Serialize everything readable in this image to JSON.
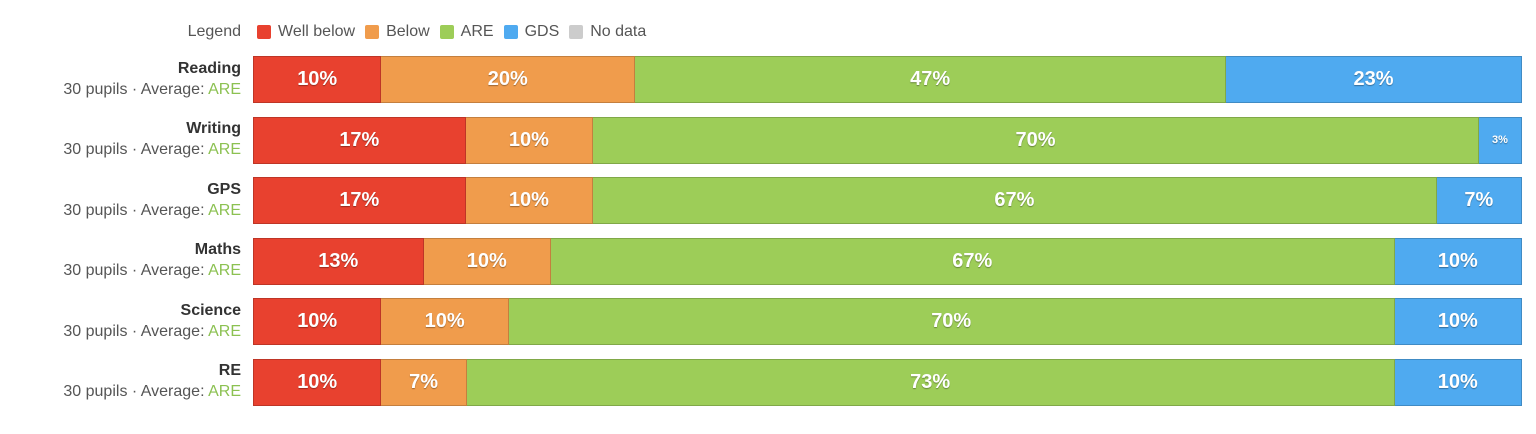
{
  "legend": {
    "title": "Legend",
    "items": [
      {
        "label": "Well below",
        "color": "#e8412f"
      },
      {
        "label": "Below",
        "color": "#f09c4c"
      },
      {
        "label": "ARE",
        "color": "#9dcd58"
      },
      {
        "label": "GDS",
        "color": "#4faaf0"
      },
      {
        "label": "No data",
        "color": "#cccccc"
      }
    ]
  },
  "rows": [
    {
      "subject": "Reading",
      "meta": "30 pupils · Average: ",
      "average": "ARE",
      "segments": [
        {
          "label": "10%",
          "pupils": 3
        },
        {
          "label": "20%",
          "pupils": 6
        },
        {
          "label": "47%",
          "pupils": 14
        },
        {
          "label": "23%",
          "pupils": 7
        }
      ]
    },
    {
      "subject": "Writing",
      "meta": "30 pupils · Average: ",
      "average": "ARE",
      "segments": [
        {
          "label": "17%",
          "pupils": 5
        },
        {
          "label": "10%",
          "pupils": 3
        },
        {
          "label": "70%",
          "pupils": 21
        },
        {
          "label": "3%",
          "pupils": 1
        }
      ]
    },
    {
      "subject": "GPS",
      "meta": "30 pupils · Average: ",
      "average": "ARE",
      "segments": [
        {
          "label": "17%",
          "pupils": 5
        },
        {
          "label": "10%",
          "pupils": 3
        },
        {
          "label": "67%",
          "pupils": 20
        },
        {
          "label": "7%",
          "pupils": 2
        }
      ]
    },
    {
      "subject": "Maths",
      "meta": "30 pupils · Average: ",
      "average": "ARE",
      "segments": [
        {
          "label": "13%",
          "pupils": 4
        },
        {
          "label": "10%",
          "pupils": 3
        },
        {
          "label": "67%",
          "pupils": 20
        },
        {
          "label": "10%",
          "pupils": 3
        }
      ]
    },
    {
      "subject": "Science",
      "meta": "30 pupils · Average: ",
      "average": "ARE",
      "segments": [
        {
          "label": "10%",
          "pupils": 3
        },
        {
          "label": "10%",
          "pupils": 3
        },
        {
          "label": "70%",
          "pupils": 21
        },
        {
          "label": "10%",
          "pupils": 3
        }
      ]
    },
    {
      "subject": "RE",
      "meta": "30 pupils · Average: ",
      "average": "ARE",
      "segments": [
        {
          "label": "10%",
          "pupils": 3
        },
        {
          "label": "7%",
          "pupils": 2
        },
        {
          "label": "73%",
          "pupils": 22
        },
        {
          "label": "10%",
          "pupils": 3
        }
      ]
    }
  ],
  "chart_data": {
    "type": "bar",
    "orientation": "horizontal",
    "stacked": true,
    "title": "",
    "xlabel": "",
    "ylabel": "",
    "categories": [
      "Reading",
      "Writing",
      "GPS",
      "Maths",
      "Science",
      "RE"
    ],
    "series": [
      {
        "name": "Well below",
        "color": "#e8412f",
        "values": [
          10,
          17,
          17,
          13,
          10,
          10
        ]
      },
      {
        "name": "Below",
        "color": "#f09c4c",
        "values": [
          20,
          10,
          10,
          10,
          10,
          7
        ]
      },
      {
        "name": "ARE",
        "color": "#9dcd58",
        "values": [
          47,
          70,
          67,
          67,
          70,
          73
        ]
      },
      {
        "name": "GDS",
        "color": "#4faaf0",
        "values": [
          23,
          3,
          7,
          10,
          10,
          10
        ]
      },
      {
        "name": "No data",
        "color": "#cccccc",
        "values": [
          0,
          0,
          0,
          0,
          0,
          0
        ]
      }
    ],
    "units": "%",
    "pupils_per_subject": 30,
    "average_per_subject": [
      "ARE",
      "ARE",
      "ARE",
      "ARE",
      "ARE",
      "ARE"
    ],
    "legend_position": "top",
    "grid": false,
    "xlim": [
      0,
      100
    ]
  }
}
